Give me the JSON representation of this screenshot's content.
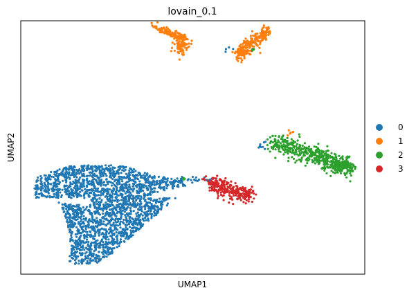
{
  "chart_data": {
    "type": "scatter",
    "title": "lovain_0.1",
    "xlabel": "UMAP1",
    "ylabel": "UMAP2",
    "grid": false,
    "ticks": "none",
    "legend_placement": "right",
    "legend": [
      {
        "name": "0",
        "color": "#1f77b4"
      },
      {
        "name": "1",
        "color": "#ff7f0e"
      },
      {
        "name": "2",
        "color": "#2ca02c"
      },
      {
        "name": "3",
        "color": "#d62728"
      }
    ],
    "series": [
      {
        "name": "0",
        "color": "#1f77b4",
        "clusters": [
          {
            "shape": "fan",
            "center": [
              0.26,
              0.34
            ],
            "count": 2200
          },
          {
            "shape": "line",
            "from": [
              0.455,
              0.38
            ],
            "to": [
              0.52,
              0.37
            ],
            "count": 18
          },
          {
            "shape": "line",
            "from": [
              0.53,
              0.375
            ],
            "to": [
              0.58,
              0.37
            ],
            "count": 10
          },
          {
            "shape": "line",
            "from": [
              0.69,
              0.505
            ],
            "to": [
              0.72,
              0.515
            ],
            "count": 8
          },
          {
            "shape": "line",
            "from": [
              0.6,
              0.885
            ],
            "to": [
              0.615,
              0.895
            ],
            "count": 4
          }
        ]
      },
      {
        "name": "1",
        "color": "#ff7f0e",
        "clusters": [
          {
            "shape": "line",
            "from": [
              0.38,
              0.98
            ],
            "to": [
              0.48,
              0.93
            ],
            "count": 110,
            "spread": 0.008
          },
          {
            "shape": "blob",
            "center": [
              0.465,
              0.9
            ],
            "radius": [
              0.02,
              0.03
            ],
            "count": 80
          },
          {
            "shape": "line",
            "from": [
              0.62,
              0.86
            ],
            "to": [
              0.72,
              0.96
            ],
            "count": 200,
            "spread": 0.014
          },
          {
            "shape": "blob",
            "center": [
              0.645,
              0.875
            ],
            "radius": [
              0.02,
              0.02
            ],
            "count": 60
          },
          {
            "shape": "line",
            "from": [
              0.77,
              0.56
            ],
            "to": [
              0.79,
              0.565
            ],
            "count": 6
          }
        ]
      },
      {
        "name": "2",
        "color": "#2ca02c",
        "clusters": [
          {
            "shape": "line",
            "from": [
              0.73,
              0.52
            ],
            "to": [
              0.96,
              0.42
            ],
            "count": 420,
            "spread": 0.02
          },
          {
            "shape": "blob",
            "center": [
              0.93,
              0.43
            ],
            "radius": [
              0.03,
              0.025
            ],
            "count": 120
          },
          {
            "shape": "blob",
            "center": [
              0.675,
              0.885
            ],
            "radius": [
              0.004,
              0.006
            ],
            "count": 6
          },
          {
            "shape": "blob",
            "center": [
              0.475,
              0.375
            ],
            "radius": [
              0.004,
              0.006
            ],
            "count": 4
          }
        ]
      },
      {
        "name": "3",
        "color": "#d62728",
        "clusters": [
          {
            "shape": "line",
            "from": [
              0.545,
              0.36
            ],
            "to": [
              0.67,
              0.31
            ],
            "count": 260,
            "spread": 0.016
          }
        ]
      }
    ]
  }
}
